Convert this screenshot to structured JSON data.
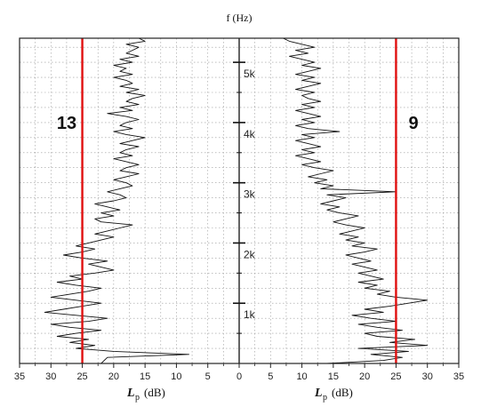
{
  "chart_data": {
    "type": "line",
    "top_axis_title": "f (Hz)",
    "x_axis_title_symbol": "L",
    "x_axis_title_sub": "p",
    "x_axis_title_unit": "(dB)",
    "x_tick_labels_left": [
      "35",
      "30",
      "25",
      "20",
      "15",
      "10",
      "5",
      "0"
    ],
    "x_tick_labels_right": [
      "5",
      "10",
      "15",
      "20",
      "25",
      "30",
      "35"
    ],
    "freq_tick_labels": [
      "1k",
      "2k",
      "3k",
      "4k",
      "5k"
    ],
    "xlim_left": [
      35,
      0
    ],
    "xlim_right": [
      0,
      35
    ],
    "ylim_hz": [
      0,
      5400
    ],
    "grid": true,
    "threshold_color": "#e01010",
    "series": [
      {
        "side": "left",
        "annotation": "13",
        "threshold_db": 25,
        "points": [
          [
            0,
            22
          ],
          [
            100,
            21
          ],
          [
            150,
            8
          ],
          [
            200,
            20
          ],
          [
            250,
            26
          ],
          [
            300,
            23
          ],
          [
            350,
            27
          ],
          [
            400,
            24
          ],
          [
            450,
            29
          ],
          [
            500,
            26
          ],
          [
            550,
            22
          ],
          [
            600,
            27
          ],
          [
            650,
            30
          ],
          [
            700,
            24
          ],
          [
            750,
            21
          ],
          [
            800,
            26
          ],
          [
            850,
            31
          ],
          [
            900,
            28
          ],
          [
            950,
            25
          ],
          [
            1000,
            22
          ],
          [
            1050,
            26
          ],
          [
            1100,
            30
          ],
          [
            1150,
            27
          ],
          [
            1200,
            24
          ],
          [
            1250,
            22
          ],
          [
            1300,
            26
          ],
          [
            1350,
            29
          ],
          [
            1400,
            25
          ],
          [
            1450,
            27
          ],
          [
            1500,
            23
          ],
          [
            1550,
            20
          ],
          [
            1600,
            22
          ],
          [
            1650,
            24
          ],
          [
            1700,
            21
          ],
          [
            1750,
            25
          ],
          [
            1800,
            28
          ],
          [
            1850,
            25
          ],
          [
            1900,
            23
          ],
          [
            1950,
            26
          ],
          [
            2000,
            24
          ],
          [
            2050,
            22
          ],
          [
            2100,
            20
          ],
          [
            2150,
            23
          ],
          [
            2200,
            21
          ],
          [
            2250,
            19
          ],
          [
            2300,
            17
          ],
          [
            2350,
            22
          ],
          [
            2400,
            23
          ],
          [
            2450,
            20
          ],
          [
            2500,
            22
          ],
          [
            2550,
            19
          ],
          [
            2600,
            21
          ],
          [
            2650,
            23
          ],
          [
            2700,
            20
          ],
          [
            2750,
            18
          ],
          [
            2800,
            19
          ],
          [
            2850,
            21
          ],
          [
            2900,
            19
          ],
          [
            2950,
            17
          ],
          [
            3000,
            18
          ],
          [
            3050,
            20
          ],
          [
            3100,
            18
          ],
          [
            3150,
            16
          ],
          [
            3200,
            19
          ],
          [
            3250,
            18
          ],
          [
            3300,
            16
          ],
          [
            3350,
            18
          ],
          [
            3400,
            20
          ],
          [
            3450,
            17
          ],
          [
            3500,
            19
          ],
          [
            3550,
            18
          ],
          [
            3600,
            16
          ],
          [
            3650,
            19
          ],
          [
            3700,
            17
          ],
          [
            3750,
            15
          ],
          [
            3800,
            18
          ],
          [
            3850,
            20
          ],
          [
            3900,
            17
          ],
          [
            3950,
            19
          ],
          [
            4000,
            18
          ],
          [
            4050,
            16
          ],
          [
            4100,
            18
          ],
          [
            4150,
            21
          ],
          [
            4200,
            17
          ],
          [
            4250,
            19
          ],
          [
            4300,
            16
          ],
          [
            4350,
            18
          ],
          [
            4400,
            17
          ],
          [
            4450,
            15
          ],
          [
            4500,
            18
          ],
          [
            4550,
            16
          ],
          [
            4600,
            19
          ],
          [
            4650,
            17
          ],
          [
            4700,
            18
          ],
          [
            4750,
            20
          ],
          [
            4800,
            17
          ],
          [
            4850,
            19
          ],
          [
            4900,
            18
          ],
          [
            4950,
            20
          ],
          [
            5000,
            17
          ],
          [
            5050,
            19
          ],
          [
            5100,
            16
          ],
          [
            5150,
            18
          ],
          [
            5200,
            17
          ],
          [
            5250,
            16
          ],
          [
            5300,
            18
          ],
          [
            5350,
            15
          ],
          [
            5400,
            16
          ]
        ]
      },
      {
        "side": "right",
        "annotation": "9",
        "threshold_db": 25,
        "points": [
          [
            0,
            14
          ],
          [
            50,
            23
          ],
          [
            100,
            26
          ],
          [
            150,
            21
          ],
          [
            200,
            27
          ],
          [
            250,
            19
          ],
          [
            300,
            30
          ],
          [
            350,
            24
          ],
          [
            400,
            28
          ],
          [
            450,
            22
          ],
          [
            500,
            20
          ],
          [
            550,
            26
          ],
          [
            600,
            22
          ],
          [
            650,
            19
          ],
          [
            700,
            25
          ],
          [
            750,
            21
          ],
          [
            800,
            18
          ],
          [
            850,
            23
          ],
          [
            900,
            20
          ],
          [
            950,
            24
          ],
          [
            1000,
            27
          ],
          [
            1050,
            30
          ],
          [
            1100,
            25
          ],
          [
            1150,
            22
          ],
          [
            1200,
            24
          ],
          [
            1250,
            20
          ],
          [
            1300,
            22
          ],
          [
            1350,
            19
          ],
          [
            1400,
            23
          ],
          [
            1450,
            21
          ],
          [
            1500,
            19
          ],
          [
            1550,
            22
          ],
          [
            1600,
            20
          ],
          [
            1650,
            18
          ],
          [
            1700,
            21
          ],
          [
            1750,
            19
          ],
          [
            1800,
            17
          ],
          [
            1850,
            20
          ],
          [
            1900,
            22
          ],
          [
            1950,
            18
          ],
          [
            2000,
            20
          ],
          [
            2050,
            17
          ],
          [
            2100,
            19
          ],
          [
            2150,
            16
          ],
          [
            2200,
            18
          ],
          [
            2250,
            20
          ],
          [
            2300,
            17
          ],
          [
            2350,
            15
          ],
          [
            2400,
            17
          ],
          [
            2450,
            19
          ],
          [
            2500,
            16
          ],
          [
            2550,
            14
          ],
          [
            2600,
            16
          ],
          [
            2650,
            13
          ],
          [
            2700,
            15
          ],
          [
            2750,
            17
          ],
          [
            2800,
            14
          ],
          [
            2850,
            25
          ],
          [
            2900,
            13
          ],
          [
            2950,
            15
          ],
          [
            3000,
            12
          ],
          [
            3050,
            14
          ],
          [
            3100,
            11
          ],
          [
            3150,
            13
          ],
          [
            3200,
            15
          ],
          [
            3250,
            12
          ],
          [
            3300,
            10
          ],
          [
            3350,
            13
          ],
          [
            3400,
            11
          ],
          [
            3450,
            9
          ],
          [
            3500,
            12
          ],
          [
            3550,
            10
          ],
          [
            3600,
            13
          ],
          [
            3650,
            11
          ],
          [
            3700,
            9
          ],
          [
            3750,
            12
          ],
          [
            3800,
            10
          ],
          [
            3850,
            16
          ],
          [
            3900,
            11
          ],
          [
            3950,
            9
          ],
          [
            4000,
            12
          ],
          [
            4050,
            10
          ],
          [
            4100,
            13
          ],
          [
            4150,
            11
          ],
          [
            4200,
            9
          ],
          [
            4250,
            12
          ],
          [
            4300,
            10
          ],
          [
            4350,
            13
          ],
          [
            4400,
            11
          ],
          [
            4450,
            10
          ],
          [
            4500,
            12
          ],
          [
            4550,
            9
          ],
          [
            4600,
            11
          ],
          [
            4650,
            13
          ],
          [
            4700,
            10
          ],
          [
            4750,
            12
          ],
          [
            4800,
            9
          ],
          [
            4850,
            11
          ],
          [
            4900,
            13
          ],
          [
            4950,
            10
          ],
          [
            5000,
            12
          ],
          [
            5050,
            10
          ],
          [
            5100,
            8
          ],
          [
            5150,
            11
          ],
          [
            5200,
            9
          ],
          [
            5250,
            12
          ],
          [
            5300,
            10
          ],
          [
            5350,
            8
          ],
          [
            5400,
            7
          ]
        ]
      }
    ]
  }
}
